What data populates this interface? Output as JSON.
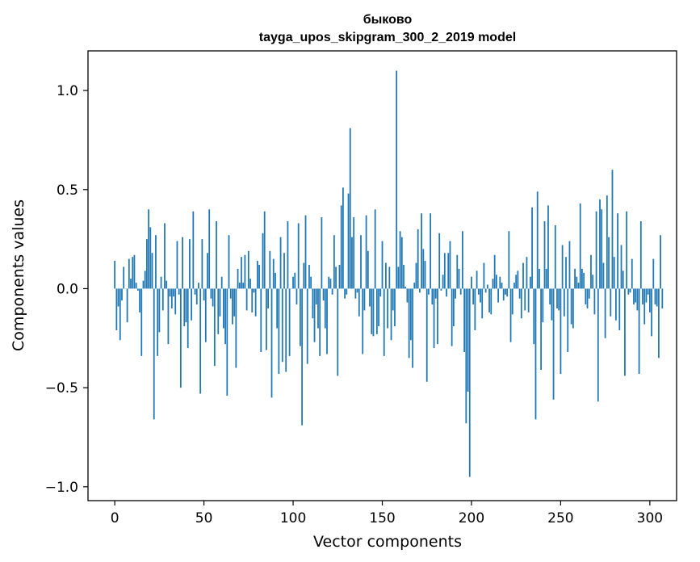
{
  "chart_data": {
    "type": "bar",
    "title": "быково",
    "subtitle": "tayga_upos_skipgram_300_2_2019 model",
    "xlabel": "Vector components",
    "ylabel": "Components values",
    "xlim": [
      -15,
      315
    ],
    "ylim": [
      -1.07,
      1.2
    ],
    "xticks": [
      0,
      50,
      100,
      150,
      200,
      250,
      300
    ],
    "yticks": [
      -1.0,
      -0.5,
      0.0,
      0.5,
      1.0
    ],
    "ytick_labels": [
      "−1.0",
      "−0.5",
      "0.0",
      "0.5",
      "1.0"
    ],
    "grid": false,
    "legend": "none",
    "bar_color": "#1f77b4",
    "values": [
      0.14,
      -0.21,
      -0.09,
      -0.26,
      -0.06,
      0.11,
      0.0,
      -0.17,
      0.15,
      0.05,
      0.16,
      0.17,
      0.03,
      -0.01,
      -0.12,
      -0.34,
      0.04,
      0.09,
      0.25,
      0.4,
      0.31,
      0.18,
      -0.66,
      0.27,
      -0.34,
      -0.22,
      0.06,
      -0.11,
      0.33,
      0.04,
      -0.28,
      -0.04,
      -0.1,
      -0.04,
      -0.13,
      0.24,
      -0.03,
      -0.5,
      0.26,
      -0.19,
      -0.17,
      -0.3,
      0.25,
      -0.16,
      0.39,
      -0.03,
      -0.08,
      0.03,
      -0.53,
      0.25,
      -0.06,
      -0.27,
      0.18,
      0.4,
      -0.05,
      -0.09,
      -0.39,
      0.34,
      -0.23,
      -0.14,
      0.06,
      -0.2,
      -0.28,
      -0.54,
      0.27,
      -0.05,
      -0.18,
      -0.14,
      -0.4,
      0.1,
      0.03,
      0.16,
      0.03,
      0.17,
      -0.11,
      0.19,
      0.05,
      -0.12,
      -0.02,
      -0.14,
      0.14,
      0.12,
      -0.32,
      0.28,
      0.39,
      -0.31,
      -0.1,
      0.19,
      -0.55,
      0.15,
      0.08,
      -0.2,
      -0.43,
      0.26,
      -0.37,
      0.18,
      -0.42,
      0.34,
      -0.34,
      0.0,
      0.06,
      0.08,
      -0.08,
      0.33,
      -0.29,
      -0.69,
      0.13,
      0.37,
      -0.38,
      0.12,
      0.06,
      -0.15,
      -0.27,
      -0.08,
      -0.2,
      -0.34,
      0.36,
      -0.06,
      -0.2,
      -0.33,
      0.06,
      0.05,
      -0.03,
      0.27,
      0.11,
      -0.44,
      0.12,
      0.42,
      0.51,
      -0.05,
      -0.03,
      0.48,
      0.81,
      0.26,
      0.36,
      -0.05,
      -0.02,
      -0.14,
      0.27,
      -0.33,
      -0.11,
      0.37,
      0.19,
      -0.09,
      -0.23,
      -0.24,
      0.4,
      -0.23,
      -0.19,
      -0.04,
      0.24,
      -0.34,
      0.13,
      -0.2,
      0.11,
      -0.26,
      -0.11,
      -0.19,
      1.1,
      0.11,
      0.29,
      0.26,
      0.12,
      0.01,
      -0.07,
      -0.35,
      -0.26,
      -0.4,
      0.03,
      0.13,
      0.3,
      -0.02,
      0.38,
      0.2,
      0.14,
      -0.47,
      -0.03,
      0.38,
      -0.08,
      -0.3,
      -0.05,
      -0.28,
      0.28,
      -0.01,
      0.07,
      0.18,
      -0.04,
      0.18,
      0.24,
      -0.29,
      -0.19,
      -0.05,
      0.17,
      0.1,
      -0.03,
      0.29,
      -0.32,
      -0.68,
      -0.52,
      -0.95,
      0.06,
      -0.08,
      -0.21,
      0.09,
      -0.03,
      -0.07,
      -0.15,
      0.13,
      -0.02,
      0.02,
      -0.12,
      -0.13,
      0.05,
      0.17,
      0.07,
      -0.07,
      0.06,
      0.03,
      -0.06,
      -0.03,
      -0.04,
      0.29,
      -0.27,
      -0.13,
      0.03,
      0.07,
      0.09,
      -0.05,
      -0.15,
      0.13,
      -0.11,
      0.16,
      -0.12,
      0.06,
      0.41,
      -0.28,
      -0.66,
      0.49,
      0.1,
      -0.41,
      -0.17,
      0.34,
      0.1,
      0.42,
      -0.08,
      -0.16,
      -0.56,
      0.32,
      -0.1,
      -0.11,
      -0.43,
      0.22,
      -0.14,
      0.16,
      -0.32,
      0.24,
      -0.18,
      -0.2,
      0.1,
      0.06,
      0.03,
      0.43,
      0.1,
      0.08,
      -0.08,
      -0.1,
      -0.05,
      0.17,
      0.07,
      -0.13,
      0.39,
      -0.57,
      0.45,
      0.4,
      0.13,
      -0.25,
      0.47,
      0.26,
      -0.14,
      0.6,
      0.16,
      -0.16,
      0.38,
      -0.21,
      0.22,
      0.09,
      -0.44,
      0.39,
      -0.03,
      -0.02,
      0.15,
      -0.08,
      -0.07,
      -0.11,
      -0.43,
      0.34,
      -0.08,
      -0.18,
      -0.07,
      -0.03,
      -0.12,
      -0.24,
      0.15,
      -0.08,
      -0.09,
      -0.35,
      0.27,
      -0.1
    ]
  }
}
